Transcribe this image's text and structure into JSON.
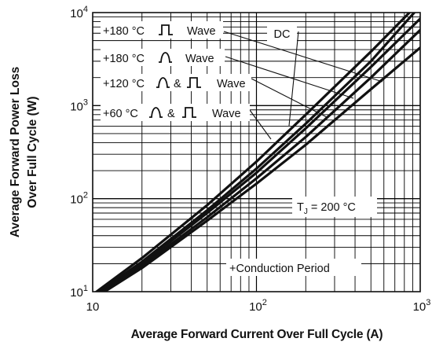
{
  "chart_data": {
    "type": "line",
    "scale": {
      "x": "log",
      "y": "log"
    },
    "xlim": [
      10,
      1000
    ],
    "ylim": [
      10,
      10000
    ],
    "grid": true,
    "xlabel": "Average Forward Current Over Full Cycle (A)",
    "ylabel_line1": "Average Forward Power Loss",
    "ylabel_line2": "Over Full Cycle (W)",
    "x_ticks": [
      {
        "value": 10,
        "base": "10",
        "exp": ""
      },
      {
        "value": 100,
        "base": "10",
        "exp": "2"
      },
      {
        "value": 1000,
        "base": "10",
        "exp": "3"
      }
    ],
    "y_ticks": [
      {
        "value": 10,
        "base": "10",
        "exp": "1"
      },
      {
        "value": 100,
        "base": "10",
        "exp": "2"
      },
      {
        "value": 1000,
        "base": "10",
        "exp": "3"
      },
      {
        "value": 10000,
        "base": "10",
        "exp": "4"
      }
    ],
    "series": [
      {
        "name": "+180 °C ⎍ Wave",
        "x": [
          10,
          20,
          50,
          100,
          200,
          500,
          860
        ],
        "y": [
          9.3,
          23,
          85,
          250,
          800,
          3800,
          10000
        ]
      },
      {
        "name": "+180 °C ⋂ Wave",
        "x": [
          10,
          20,
          50,
          100,
          200,
          500,
          920
        ],
        "y": [
          9.0,
          21,
          75,
          210,
          640,
          3000,
          10000
        ]
      },
      {
        "name": "+120 °C ⋂ & ⎍ Wave",
        "x": [
          10,
          20,
          50,
          100,
          200,
          500,
          1000
        ],
        "y": [
          8.7,
          20,
          70,
          190,
          570,
          2600,
          8600
        ]
      },
      {
        "name": "+60 °C ⋂ & ⎍ Wave",
        "x": [
          10,
          20,
          50,
          100,
          200,
          500,
          1000
        ],
        "y": [
          8.5,
          19,
          63,
          165,
          460,
          2000,
          6500
        ]
      },
      {
        "name": "DC",
        "x": [
          10,
          20,
          50,
          100,
          200,
          500,
          1000
        ],
        "y": [
          8.3,
          18,
          58,
          145,
          380,
          1500,
          4200
        ]
      }
    ],
    "annotations": {
      "sq180": {
        "prefix": "+180 °C",
        "suffix": "Wave"
      },
      "sine180": {
        "prefix": "+180 °C",
        "suffix": "Wave"
      },
      "w120": {
        "prefix": "+120 °C",
        "amp": "&",
        "suffix": "Wave"
      },
      "w60": {
        "prefix": "+60 °C",
        "amp": "&",
        "suffix": "Wave"
      },
      "dc": "DC",
      "tj": {
        "main": "T",
        "sub": "J",
        "rest": " = 200 °C"
      },
      "conduction": "+Conduction Period"
    },
    "line_color": "#111111",
    "grid_color": "#000000"
  }
}
